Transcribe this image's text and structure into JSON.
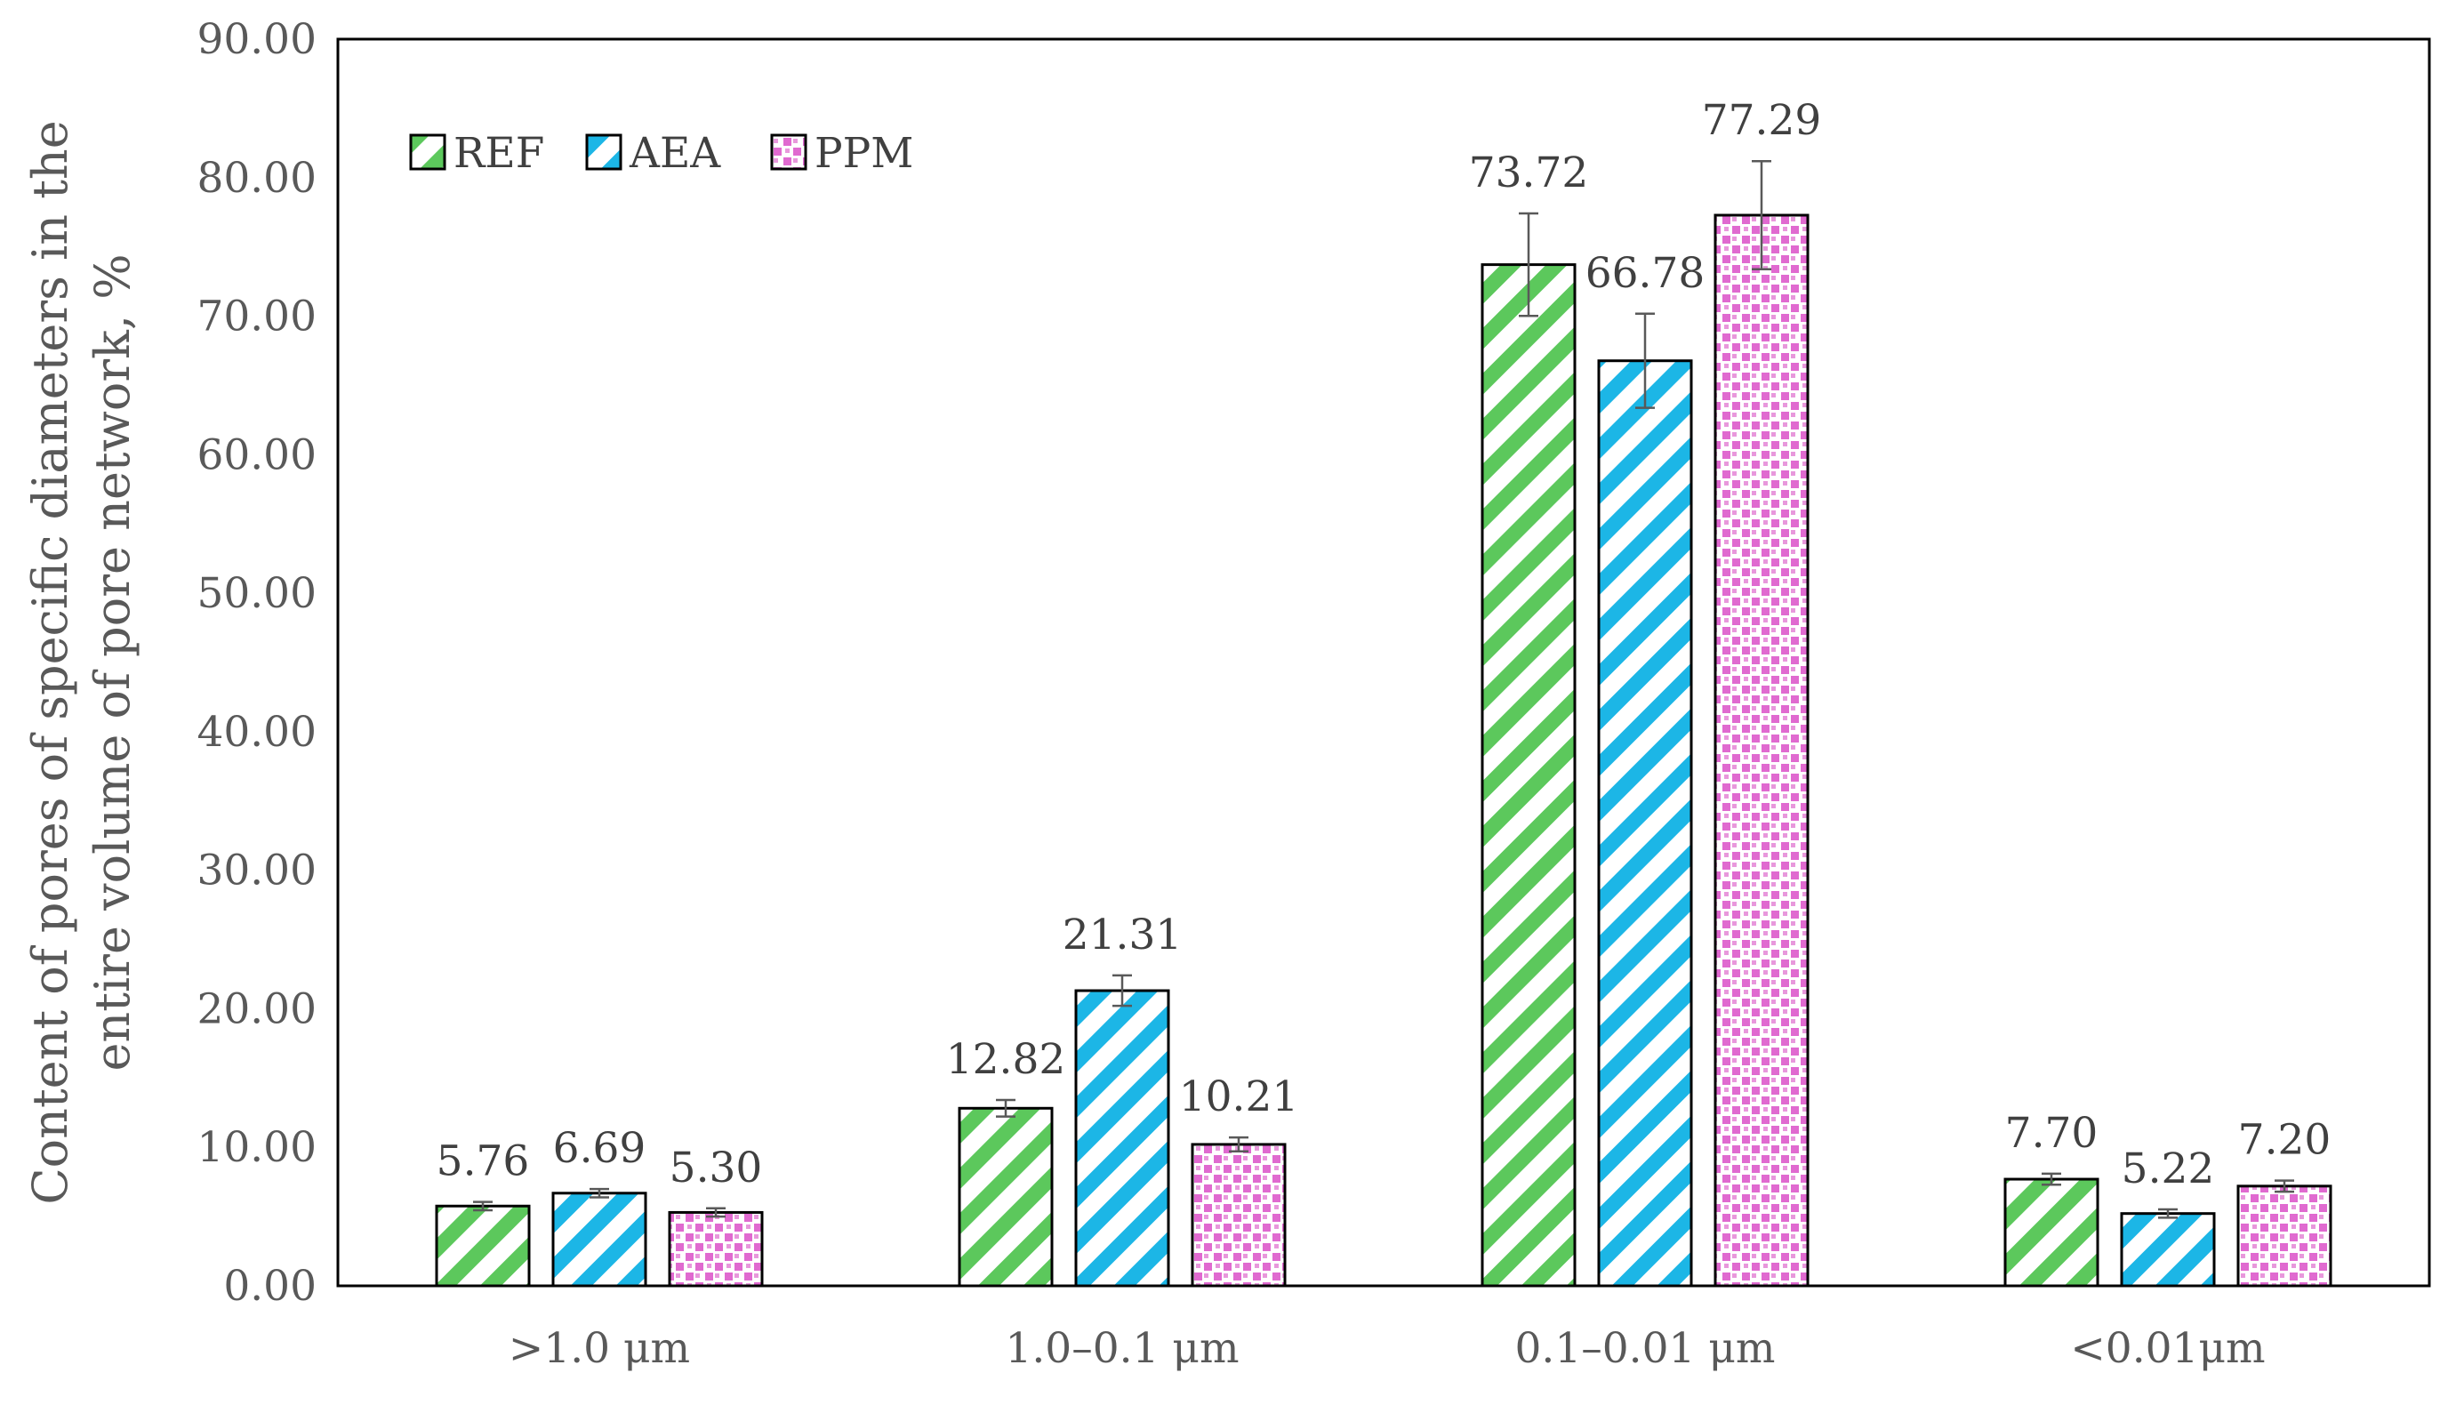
{
  "chart_data": {
    "type": "bar",
    "title": "",
    "xlabel": "",
    "ylabel_lines": [
      "Content of pores of specific diameters in the",
      "entire volume of pore network, %"
    ],
    "ylim": [
      0,
      90
    ],
    "yticks": [
      "0.00",
      "10.00",
      "20.00",
      "30.00",
      "40.00",
      "50.00",
      "60.00",
      "70.00",
      "80.00",
      "90.00"
    ],
    "categories": [
      ">1.0 μm",
      "1.0–0.1 μm",
      "0.1–0.01 μm",
      "<0.01μm"
    ],
    "series": [
      {
        "name": "REF",
        "values": [
          5.76,
          12.82,
          73.72,
          7.7
        ],
        "labels": [
          "5.76",
          "12.82",
          "73.72",
          "7.70"
        ],
        "errors": [
          0.3,
          0.6,
          3.7,
          0.4
        ],
        "color": "#5cc85c",
        "pattern": "diagonal-stripes"
      },
      {
        "name": "AEA",
        "values": [
          6.69,
          21.31,
          66.78,
          5.22
        ],
        "labels": [
          "6.69",
          "21.31",
          "66.78",
          "5.22"
        ],
        "errors": [
          0.3,
          1.1,
          3.4,
          0.3
        ],
        "color": "#1cb6e6",
        "pattern": "diagonal-stripes"
      },
      {
        "name": "PPM",
        "values": [
          5.3,
          10.21,
          77.29,
          7.2
        ],
        "labels": [
          "5.30",
          "10.21",
          "77.29",
          "7.20"
        ],
        "errors": [
          0.3,
          0.5,
          3.9,
          0.4
        ],
        "color": "#e06ad0",
        "pattern": "checker-dots"
      }
    ],
    "legend_position": "top-left",
    "grid": false
  }
}
